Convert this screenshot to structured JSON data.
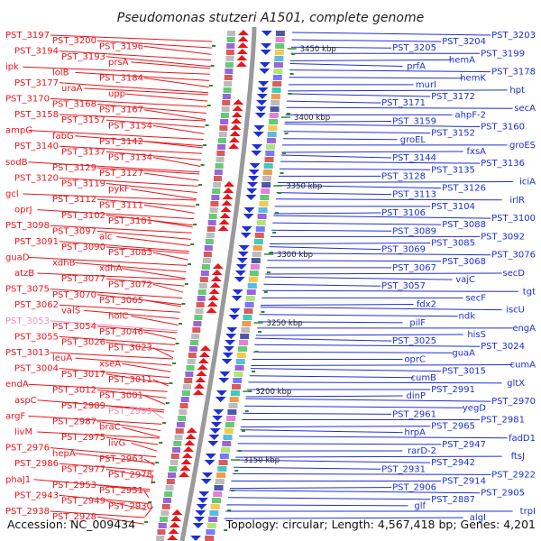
{
  "title": "Pseudomonas stutzeri A1501, complete genome",
  "footer": {
    "accession": "Accession: NC_009434",
    "summary": "Topology: circular; Length: 4,567,418 bp; Genes: 4,201"
  },
  "colors": {
    "forward": "#e8151b",
    "reverse": "#1f2fd6",
    "pseudo": "#f08fb8",
    "backbone": "#9a9a9a",
    "ruler_tick": "#2a8a2a"
  },
  "ruler": [
    "3450 kbp",
    "3400 kbp",
    "3350 kbp",
    "3300 kbp",
    "3250 kbp",
    "3200 kbp",
    "3150 kbp"
  ],
  "forward_strand": [
    {
      "label": "PST_3197"
    },
    {
      "label": "PST_3200"
    },
    {
      "label": "PST_3196"
    },
    {
      "label": "PST_3194"
    },
    {
      "label": "PST_3193"
    },
    {
      "label": "prsA"
    },
    {
      "label": "ipk"
    },
    {
      "label": "lolB"
    },
    {
      "label": "PST_3184"
    },
    {
      "label": "PST_3177"
    },
    {
      "label": "uraA"
    },
    {
      "label": "upp"
    },
    {
      "label": "PST_3170"
    },
    {
      "label": "PST_3168"
    },
    {
      "label": "PST_3167"
    },
    {
      "label": "PST_3158"
    },
    {
      "label": "PST_3157"
    },
    {
      "label": "PST_3154"
    },
    {
      "label": "ampG"
    },
    {
      "label": "fabG"
    },
    {
      "label": "PST_3142"
    },
    {
      "label": "PST_3140"
    },
    {
      "label": "PST_3137"
    },
    {
      "label": "PST_3134"
    },
    {
      "label": "sodB"
    },
    {
      "label": "PST_3129"
    },
    {
      "label": "PST_3127"
    },
    {
      "label": "PST_3120"
    },
    {
      "label": "PST_3119"
    },
    {
      "label": "pykF"
    },
    {
      "label": "gcl"
    },
    {
      "label": "PST_3112"
    },
    {
      "label": "PST_3111"
    },
    {
      "label": "oprJ"
    },
    {
      "label": "PST_3102"
    },
    {
      "label": "PST_3101"
    },
    {
      "label": "PST_3098"
    },
    {
      "label": "PST_3097"
    },
    {
      "label": "alc"
    },
    {
      "label": "PST_3091"
    },
    {
      "label": "PST_3090"
    },
    {
      "label": "PST_3083"
    },
    {
      "label": "guaD"
    },
    {
      "label": "xdhB"
    },
    {
      "label": "xdhA"
    },
    {
      "label": "atzB"
    },
    {
      "label": "PST_3077"
    },
    {
      "label": "PST_3072"
    },
    {
      "label": "PST_3075"
    },
    {
      "label": "PST_3070"
    },
    {
      "label": "PST_3065"
    },
    {
      "label": "PST_3062"
    },
    {
      "label": "valS"
    },
    {
      "label": "holC"
    },
    {
      "label": "PST_3053",
      "pseudo": true
    },
    {
      "label": "PST_3054"
    },
    {
      "label": "PST_3046"
    },
    {
      "label": "PST_3055"
    },
    {
      "label": "PST_3026"
    },
    {
      "label": "PST_3023"
    },
    {
      "label": "PST_3013"
    },
    {
      "label": "leuA"
    },
    {
      "label": "xseA"
    },
    {
      "label": "PST_3004"
    },
    {
      "label": "PST_3017"
    },
    {
      "label": "PST_3011"
    },
    {
      "label": "endA"
    },
    {
      "label": "PST_3012"
    },
    {
      "label": "PST_3001"
    },
    {
      "label": "aspC"
    },
    {
      "label": "PST_2989"
    },
    {
      "label": "PST_2999",
      "pseudo": true
    },
    {
      "label": "argF"
    },
    {
      "label": "PST_2987"
    },
    {
      "label": "braC"
    },
    {
      "label": "livM"
    },
    {
      "label": "PST_2975"
    },
    {
      "label": "livG"
    },
    {
      "label": "PST_2976"
    },
    {
      "label": "hepA"
    },
    {
      "label": "PST_2963"
    },
    {
      "label": "PST_2986"
    },
    {
      "label": "PST_2977"
    },
    {
      "label": "PST_2978"
    },
    {
      "label": "phaJ1"
    },
    {
      "label": "PST_2953"
    },
    {
      "label": "PST_2951"
    },
    {
      "label": "PST_2943"
    },
    {
      "label": "PST_2949"
    },
    {
      "label": "PST_2930"
    },
    {
      "label": "PST_2938"
    },
    {
      "label": "PST_2928"
    }
  ],
  "reverse_strand": [
    {
      "label": "PST_3203"
    },
    {
      "label": "PST_3204"
    },
    {
      "label": "PST_3205"
    },
    {
      "label": "PST_3199"
    },
    {
      "label": "hemA"
    },
    {
      "label": "prfA"
    },
    {
      "label": "PST_3178"
    },
    {
      "label": "hemK"
    },
    {
      "label": "murI"
    },
    {
      "label": "hpt"
    },
    {
      "label": "PST_3172"
    },
    {
      "label": "PST_3171"
    },
    {
      "label": "secA"
    },
    {
      "label": "ahpF-2"
    },
    {
      "label": "PST_3159"
    },
    {
      "label": "PST_3160"
    },
    {
      "label": "PST_3152"
    },
    {
      "label": "groEL"
    },
    {
      "label": "groES"
    },
    {
      "label": "fxsA"
    },
    {
      "label": "PST_3144"
    },
    {
      "label": "PST_3136"
    },
    {
      "label": "PST_3135"
    },
    {
      "label": "PST_3128"
    },
    {
      "label": "iciA"
    },
    {
      "label": "PST_3126"
    },
    {
      "label": "PST_3113"
    },
    {
      "label": "irlR"
    },
    {
      "label": "PST_3104"
    },
    {
      "label": "PST_3106"
    },
    {
      "label": "PST_3100"
    },
    {
      "label": "PST_3088"
    },
    {
      "label": "PST_3089"
    },
    {
      "label": "PST_3092"
    },
    {
      "label": "PST_3085"
    },
    {
      "label": "PST_3069"
    },
    {
      "label": "PST_3076"
    },
    {
      "label": "PST_3068"
    },
    {
      "label": "PST_3067"
    },
    {
      "label": "secD"
    },
    {
      "label": "vajC"
    },
    {
      "label": "PST_3057"
    },
    {
      "label": "tgt"
    },
    {
      "label": "secF"
    },
    {
      "label": "fdx2"
    },
    {
      "label": "iscU"
    },
    {
      "label": "ndk"
    },
    {
      "label": "pilF"
    },
    {
      "label": "engA"
    },
    {
      "label": "hisS"
    },
    {
      "label": "PST_3025"
    },
    {
      "label": "PST_3024"
    },
    {
      "label": "guaA"
    },
    {
      "label": "oprC"
    },
    {
      "label": "cumA"
    },
    {
      "label": "PST_3015"
    },
    {
      "label": "cumB"
    },
    {
      "label": "gltX"
    },
    {
      "label": "PST_2991"
    },
    {
      "label": "dinP"
    },
    {
      "label": "PST_2970"
    },
    {
      "label": "yegD"
    },
    {
      "label": "PST_2961"
    },
    {
      "label": "PST_2981"
    },
    {
      "label": "PST_2965"
    },
    {
      "label": "hrpA"
    },
    {
      "label": "fadD1"
    },
    {
      "label": "PST_2947"
    },
    {
      "label": "rarD-2"
    },
    {
      "label": "ftsJ"
    },
    {
      "label": "PST_2942"
    },
    {
      "label": "PST_2931"
    },
    {
      "label": "PST_2922"
    },
    {
      "label": "PST_2914"
    },
    {
      "label": "PST_2906"
    },
    {
      "label": "PST_2905"
    },
    {
      "label": "PST_2887"
    },
    {
      "label": "glf"
    },
    {
      "label": "trpI"
    },
    {
      "label": "algI"
    }
  ]
}
